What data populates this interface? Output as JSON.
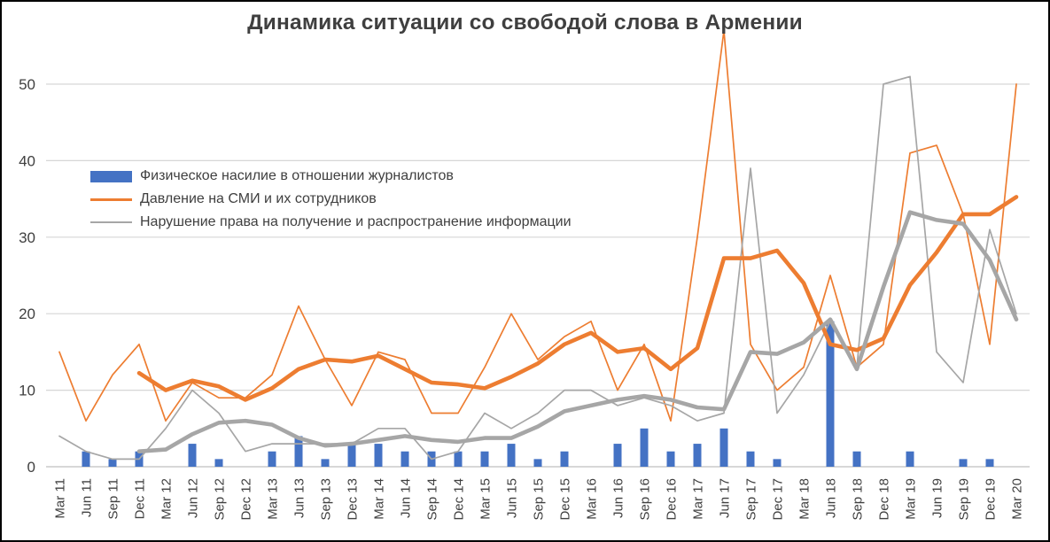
{
  "title": "Динамика ситуации со свободой слова в Армении",
  "colors": {
    "bar_blue": "#4472C4",
    "line_orange": "#ED7D31",
    "line_gray": "#A6A6A6",
    "text_dark": "#3F3F3F",
    "axis_text": "#404040",
    "gridline": "#D6D6D6",
    "baseline": "#BFBFBF",
    "border": "#000000"
  },
  "legend": {
    "items": [
      {
        "label": "Физическое насилие в отношении журналистов",
        "swatch": "bar",
        "color": "#4472C4"
      },
      {
        "label": "Давление на СМИ и их сотрудников",
        "swatch": "line-thick",
        "color": "#ED7D31"
      },
      {
        "label": "Нарушение права на получение и распространение информации",
        "swatch": "line-thin",
        "color": "#A6A6A6"
      }
    ]
  },
  "chart_data": {
    "type": "combo-bar-line",
    "title": "Динамика ситуации со свободой слова в Армении",
    "xlabel": "",
    "ylabel": "",
    "ylim": [
      0,
      57.5
    ],
    "y_ticks": [
      0,
      10,
      20,
      30,
      40,
      50
    ],
    "grid": "horizontal",
    "legend_position": "inside-upper-left",
    "categories": [
      "Mar 11",
      "Jun 11",
      "Sep 11",
      "Dec 11",
      "Mar 12",
      "Jun 12",
      "Sep 12",
      "Dec 12",
      "Mar 13",
      "Jun 13",
      "Sep 13",
      "Dec 13",
      "Mar 14",
      "Jun 14",
      "Sep 14",
      "Dec 14",
      "Mar 15",
      "Jun 15",
      "Sep 15",
      "Dec 15",
      "Mar 16",
      "Jun 16",
      "Sep 16",
      "Dec 16",
      "Mar 17",
      "Jun 17",
      "Sep 17",
      "Dec 17",
      "Mar 18",
      "Jun 18",
      "Sep 18",
      "Dec 18",
      "Mar 19",
      "Jun 19",
      "Sep 19",
      "Dec 19",
      "Mar 20"
    ],
    "series": [
      {
        "name": "Физическое насилие в отношении журналистов",
        "type": "bar",
        "color": "#4472C4",
        "values": [
          0,
          2,
          1,
          2,
          0,
          3,
          1,
          0,
          2,
          4,
          1,
          3,
          3,
          2,
          2,
          2,
          2,
          3,
          1,
          2,
          0,
          3,
          5,
          2,
          3,
          5,
          2,
          1,
          0,
          19,
          2,
          0,
          2,
          0,
          1,
          1,
          0
        ]
      },
      {
        "name": "Давление на СМИ и их сотрудников",
        "type": "line",
        "weight": "thin",
        "color": "#ED7D31",
        "values": [
          15,
          6,
          12,
          16,
          6,
          11,
          9,
          9,
          12,
          21,
          14,
          8,
          15,
          14,
          7,
          7,
          13,
          20,
          14,
          17,
          19,
          10,
          16,
          6,
          30,
          57,
          16,
          10,
          13,
          25,
          13,
          16,
          41,
          42,
          33,
          16,
          50
        ]
      },
      {
        "name": "Нарушение права на получение и распространение информации",
        "type": "line",
        "weight": "thin",
        "color": "#A6A6A6",
        "values": [
          4,
          2,
          1,
          1,
          5,
          10,
          7,
          2,
          3,
          3,
          3,
          3,
          5,
          5,
          1,
          2,
          7,
          5,
          7,
          10,
          10,
          8,
          9,
          8,
          6,
          7,
          39,
          7,
          12,
          19,
          13,
          50,
          51,
          15,
          11,
          31,
          20
        ]
      },
      {
        "name": null,
        "role": "4-quarter-trend-of-series-2",
        "type": "line",
        "weight": "thick",
        "color": "#ED7D31",
        "values": [
          null,
          null,
          null,
          12.25,
          10,
          11.25,
          10.5,
          8.75,
          10.25,
          12.75,
          14,
          13.75,
          14.5,
          12.75,
          11,
          10.75,
          10.25,
          11.75,
          13.5,
          16,
          17.5,
          15,
          15.5,
          12.75,
          15.5,
          27.25,
          27.25,
          28.25,
          24,
          16,
          15.25,
          16.75,
          23.75,
          28,
          33,
          33,
          35.25
        ]
      },
      {
        "name": null,
        "role": "4-quarter-trend-of-series-3",
        "type": "line",
        "weight": "thick",
        "color": "#A6A6A6",
        "values": [
          null,
          null,
          null,
          2,
          2.25,
          4.25,
          5.75,
          6,
          5.5,
          3.75,
          2.75,
          3,
          3.5,
          4,
          3.5,
          3.25,
          3.75,
          3.75,
          5.25,
          7.25,
          8,
          8.75,
          9.25,
          8.75,
          7.75,
          7.5,
          15,
          14.75,
          16.25,
          19.25,
          12.75,
          23.5,
          33.25,
          32.25,
          31.75,
          27,
          19.25
        ]
      }
    ]
  }
}
